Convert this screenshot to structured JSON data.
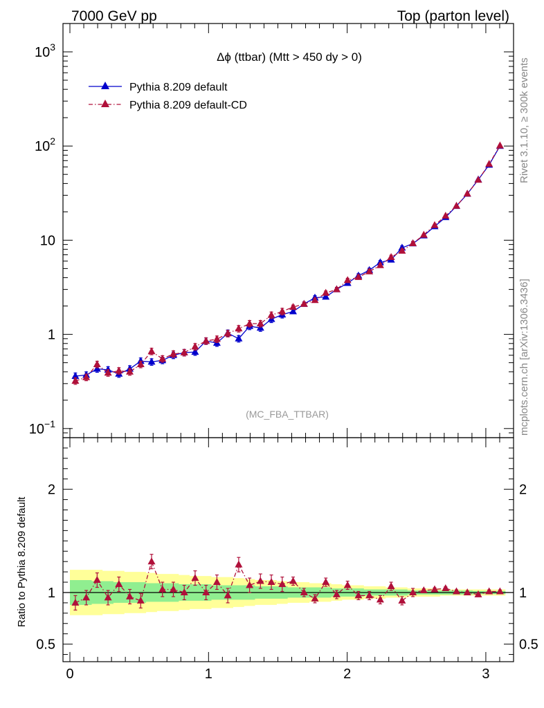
{
  "header": {
    "left": "7000 GeV pp",
    "right": "Top (parton level)"
  },
  "side_labels": {
    "rivet": "Rivet 3.1.10, ≥ 300k events",
    "mcplots": "mcplots.cern.ch [arXiv:1306.3436]"
  },
  "colors": {
    "default": "#0000cc",
    "cd": "#b0103a",
    "band_outer": "#ffff99",
    "band_inner": "#90ee90"
  },
  "chart_data": [
    {
      "type": "line",
      "title": "Δϕ (ttbar) (Mtt > 450 dy > 0)",
      "watermark": "(MC_FBA_TTBAR)",
      "yscale": "log",
      "xlim": [
        -0.05,
        3.2
      ],
      "ylim": [
        0.08,
        2000
      ],
      "yticks": [
        {
          "value": 1000,
          "base": "10",
          "exp": "3"
        },
        {
          "value": 100,
          "base": "10",
          "exp": "2"
        },
        {
          "value": 10,
          "base": "10",
          "exp": ""
        },
        {
          "value": 1,
          "base": "1",
          "exp": ""
        },
        {
          "value": 0.1,
          "base": "10",
          "exp": "−1"
        }
      ],
      "legend": "top-left",
      "x": [
        0.0393,
        0.1178,
        0.1963,
        0.2749,
        0.3534,
        0.432,
        0.5105,
        0.589,
        0.6676,
        0.7461,
        0.8247,
        0.9032,
        0.9817,
        1.0603,
        1.1388,
        1.2174,
        1.2959,
        1.3744,
        1.453,
        1.5315,
        1.6101,
        1.6886,
        1.7671,
        1.8457,
        1.9242,
        2.0028,
        2.0813,
        2.1598,
        2.2384,
        2.3169,
        2.3955,
        2.474,
        2.5525,
        2.6311,
        2.7096,
        2.7882,
        2.8667,
        2.9452,
        3.0238,
        3.1023
      ],
      "series": [
        {
          "name": "Pythia 8.209 default",
          "color": "#0000cc",
          "marker": "triangle",
          "line": "solid",
          "values": [
            0.36,
            0.37,
            0.43,
            0.42,
            0.38,
            0.43,
            0.52,
            0.51,
            0.53,
            0.6,
            0.64,
            0.65,
            0.85,
            0.81,
            1.03,
            0.9,
            1.22,
            1.17,
            1.45,
            1.62,
            1.75,
            2.1,
            2.45,
            2.5,
            3.0,
            3.5,
            4.2,
            4.8,
            5.8,
            6.2,
            8.3,
            9.2,
            11.2,
            14.0,
            17.5,
            23.0,
            31.0,
            44.0,
            63.0,
            100.0
          ]
        },
        {
          "name": "Pythia 8.209 default-CD",
          "color": "#b0103a",
          "marker": "triangle",
          "line": "dashdot",
          "values": [
            0.32,
            0.35,
            0.48,
            0.39,
            0.41,
            0.4,
            0.48,
            0.66,
            0.55,
            0.62,
            0.64,
            0.74,
            0.85,
            0.89,
            1.02,
            1.15,
            1.3,
            1.3,
            1.6,
            1.75,
            1.95,
            2.1,
            2.3,
            2.75,
            3.0,
            3.75,
            4.05,
            4.65,
            5.4,
            6.6,
            7.7,
            9.25,
            11.4,
            14.4,
            18.1,
            23.1,
            31.1,
            43.6,
            64.3,
            101.0
          ]
        }
      ]
    },
    {
      "type": "line",
      "ylabel": "Ratio to Pythia 8.209 default",
      "xlim": [
        -0.05,
        3.2
      ],
      "ylim": [
        0.33,
        2.5
      ],
      "xticks": [
        0,
        1,
        2,
        3
      ],
      "yticks": [
        0.5,
        1,
        2
      ],
      "x": [
        0.0393,
        0.1178,
        0.1963,
        0.2749,
        0.3534,
        0.432,
        0.5105,
        0.589,
        0.6676,
        0.7461,
        0.8247,
        0.9032,
        0.9817,
        1.0603,
        1.1388,
        1.2174,
        1.2959,
        1.3744,
        1.453,
        1.5315,
        1.6101,
        1.6886,
        1.7671,
        1.8457,
        1.9242,
        2.0028,
        2.0813,
        2.1598,
        2.2384,
        2.3169,
        2.3955,
        2.474,
        2.5525,
        2.6311,
        2.7096,
        2.7882,
        2.8667,
        2.9452,
        3.0238,
        3.1023
      ],
      "series": [
        {
          "name": "Pythia 8.209 default-CD",
          "color": "#b0103a",
          "values": [
            0.9,
            0.95,
            1.12,
            0.95,
            1.08,
            0.96,
            0.92,
            1.3,
            1.03,
            1.03,
            1.0,
            1.14,
            1.0,
            1.1,
            0.97,
            1.27,
            1.07,
            1.11,
            1.1,
            1.08,
            1.11,
            1.0,
            0.94,
            1.1,
            0.98,
            1.07,
            0.97,
            0.97,
            0.93,
            1.06,
            0.92,
            1.0,
            1.02,
            1.03,
            1.04,
            1.01,
            1.0,
            0.98,
            1.01,
            1.01
          ]
        }
      ],
      "band_inner_halfwidth": [
        0.12,
        0.12,
        0.11,
        0.11,
        0.1,
        0.1,
        0.1,
        0.09,
        0.09,
        0.09,
        0.08,
        0.08,
        0.08,
        0.07,
        0.07,
        0.07,
        0.07,
        0.06,
        0.06,
        0.06,
        0.05,
        0.05,
        0.05,
        0.05,
        0.04,
        0.04,
        0.04,
        0.03,
        0.03,
        0.03,
        0.03,
        0.02,
        0.02,
        0.02,
        0.02,
        0.02,
        0.02,
        0.015,
        0.015,
        0.015
      ],
      "band_outer_halfwidth": [
        0.22,
        0.22,
        0.22,
        0.21,
        0.21,
        0.2,
        0.2,
        0.19,
        0.18,
        0.18,
        0.17,
        0.16,
        0.16,
        0.15,
        0.15,
        0.14,
        0.13,
        0.12,
        0.12,
        0.11,
        0.1,
        0.1,
        0.09,
        0.09,
        0.08,
        0.07,
        0.07,
        0.06,
        0.06,
        0.05,
        0.05,
        0.04,
        0.04,
        0.04,
        0.03,
        0.03,
        0.03,
        0.03,
        0.03,
        0.03
      ]
    }
  ]
}
